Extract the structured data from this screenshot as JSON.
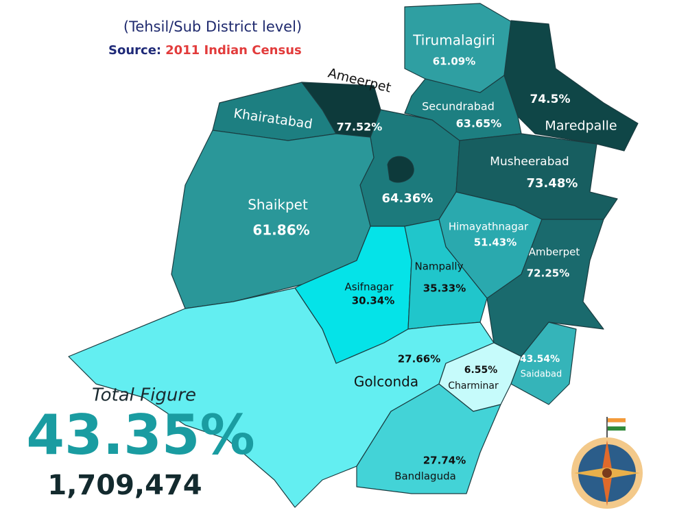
{
  "header": {
    "subtitle": "(Tehsil/Sub District level)",
    "source_label": "Source:",
    "source_value": "2011 Indian Census"
  },
  "regions": [
    {
      "name": "Tirumalagiri",
      "value": "61.09%",
      "color": "#2f9fa2"
    },
    {
      "name": "Maredpalle",
      "value": "74.5%",
      "color": "#0f4647"
    },
    {
      "name": "Secundrabad",
      "value": "63.65%",
      "color": "#1d7f81"
    },
    {
      "name": "Khairatabad",
      "color": "#1d7f81"
    },
    {
      "name": "Ameerpet",
      "value": "77.52%",
      "color": "#0d3a3b"
    },
    {
      "value": "64.36%",
      "color": "#1c7a7c"
    },
    {
      "name": "Musheerabad",
      "value": "73.48%",
      "color": "#175e60"
    },
    {
      "name": "Shaikpet",
      "value": "61.86%",
      "color": "#2a9799"
    },
    {
      "name": "Himayathnagar",
      "value": "51.43%",
      "color": "#2aa9ae"
    },
    {
      "name": "Amberpet",
      "value": "72.25%",
      "color": "#1a6a6d"
    },
    {
      "name": "Asifnagar",
      "value": "30.34%",
      "color": "#05e3e8"
    },
    {
      "name": "Nampally",
      "value": "35.33%",
      "color": "#20c6cb"
    },
    {
      "name": "Golconda",
      "value": "27.66%",
      "color": "#63eef1"
    },
    {
      "name": "Charminar",
      "value": "6.55%",
      "color": "#c6fbfb"
    },
    {
      "name": "Saidabad",
      "value": "43.54%",
      "color": "#35b4b9"
    },
    {
      "name": "Bandlaguda",
      "value": "27.74%",
      "color": "#43d3d7"
    }
  ],
  "total": {
    "label": "Total Figure",
    "value": "43.35%",
    "count": "1,709,474"
  }
}
